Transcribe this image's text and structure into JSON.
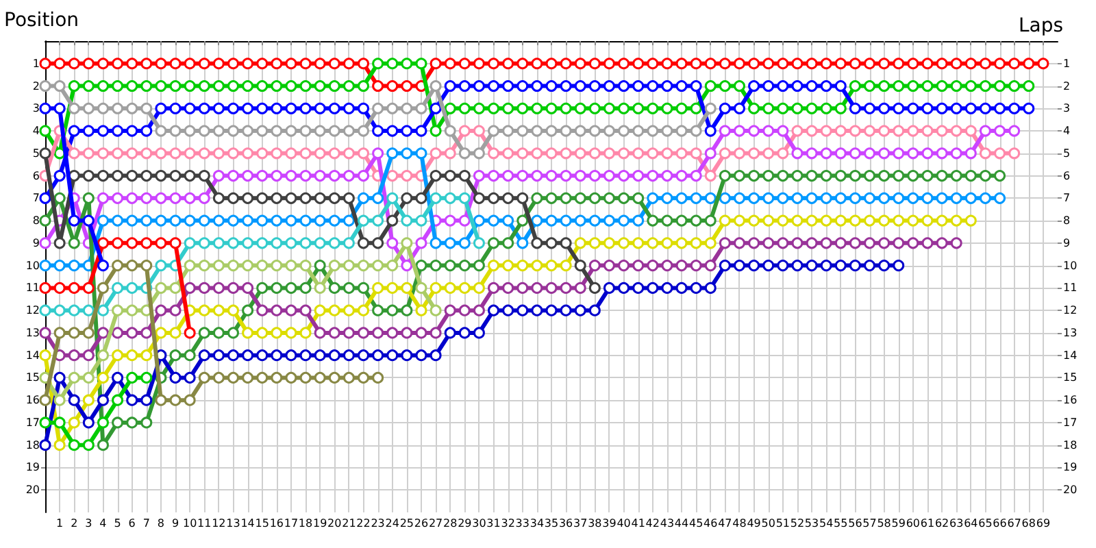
{
  "chart_data": {
    "type": "line",
    "xlabel": "Laps",
    "ylabel": "Position",
    "marker": "circle",
    "line_style": "solid",
    "grid": true,
    "x": [
      0,
      1,
      2,
      3,
      4,
      5,
      6,
      7,
      8,
      9,
      10,
      11,
      12,
      13,
      14,
      15,
      16,
      17,
      18,
      19,
      20,
      21,
      22,
      23,
      24,
      25,
      26,
      27,
      28,
      29,
      30,
      31,
      32,
      33,
      34,
      35,
      36,
      37,
      38,
      39,
      40,
      41,
      42,
      43,
      44,
      45,
      46,
      47,
      48,
      49,
      50,
      51,
      52,
      53,
      54,
      55,
      56,
      57,
      58,
      59,
      60,
      61,
      62,
      63,
      64,
      65,
      66,
      67,
      68,
      69
    ],
    "xlim": [
      0,
      70
    ],
    "xticks": [
      1,
      2,
      3,
      4,
      5,
      6,
      7,
      8,
      9,
      10,
      11,
      12,
      13,
      14,
      15,
      16,
      17,
      18,
      19,
      20,
      21,
      22,
      23,
      24,
      25,
      26,
      27,
      28,
      29,
      30,
      31,
      32,
      33,
      34,
      35,
      36,
      37,
      38,
      39,
      40,
      41,
      42,
      43,
      44,
      45,
      46,
      47,
      48,
      49,
      50,
      51,
      52,
      53,
      54,
      55,
      56,
      57,
      58,
      59,
      60,
      61,
      62,
      63,
      64,
      65,
      66,
      67,
      68,
      69
    ],
    "ylim": [
      21,
      0
    ],
    "yticks": [
      1,
      2,
      3,
      4,
      5,
      6,
      7,
      8,
      9,
      10,
      11,
      12,
      13,
      14,
      15,
      16,
      17,
      18,
      19,
      20
    ],
    "y2lim": [
      21,
      0
    ],
    "y2ticks": [
      1,
      2,
      3,
      4,
      5,
      6,
      7,
      8,
      9,
      10,
      11,
      12,
      13,
      14,
      15,
      16,
      17,
      18,
      19,
      20
    ],
    "series": [
      {
        "color": "#ff0000",
        "values": [
          1,
          1,
          1,
          1,
          1,
          1,
          1,
          1,
          1,
          1,
          1,
          1,
          1,
          1,
          1,
          1,
          1,
          1,
          1,
          1,
          1,
          1,
          1,
          2,
          2,
          2,
          2,
          1,
          1,
          1,
          1,
          1,
          1,
          1,
          1,
          1,
          1,
          1,
          1,
          1,
          1,
          1,
          1,
          1,
          1,
          1,
          1,
          1,
          1,
          1,
          1,
          1,
          1,
          1,
          1,
          1,
          1,
          1,
          1,
          1,
          1,
          1,
          1,
          1,
          1,
          1,
          1,
          1,
          1,
          1
        ]
      },
      {
        "color": "#00cc00",
        "values": [
          4,
          5,
          2,
          2,
          2,
          2,
          2,
          2,
          2,
          2,
          2,
          2,
          2,
          2,
          2,
          2,
          2,
          2,
          2,
          2,
          2,
          2,
          2,
          1,
          1,
          1,
          1,
          4,
          3,
          3,
          3,
          3,
          3,
          3,
          3,
          3,
          3,
          3,
          3,
          3,
          3,
          3,
          3,
          3,
          3,
          3,
          2,
          2,
          2,
          3,
          3,
          3,
          3,
          3,
          3,
          3,
          2,
          2,
          2,
          2,
          2,
          2,
          2,
          2,
          2,
          2,
          2,
          2,
          2,
          null
        ]
      },
      {
        "color": "#0000ff",
        "values": [
          7,
          6,
          4,
          4,
          4,
          4,
          4,
          4,
          3,
          3,
          3,
          3,
          3,
          3,
          3,
          3,
          3,
          3,
          3,
          3,
          3,
          3,
          3,
          4,
          4,
          4,
          4,
          3,
          2,
          2,
          2,
          2,
          2,
          2,
          2,
          2,
          2,
          2,
          2,
          2,
          2,
          2,
          2,
          2,
          2,
          2,
          4,
          3,
          3,
          2,
          2,
          2,
          2,
          2,
          2,
          2,
          3,
          3,
          3,
          3,
          3,
          3,
          3,
          3,
          3,
          3,
          3,
          3,
          3,
          null
        ]
      },
      {
        "color": "#a0a0a0",
        "values": [
          2,
          2,
          3,
          3,
          3,
          3,
          3,
          3,
          4,
          4,
          4,
          4,
          4,
          4,
          4,
          4,
          4,
          4,
          4,
          4,
          4,
          4,
          4,
          3,
          3,
          3,
          3,
          2,
          4,
          5,
          5,
          4,
          4,
          4,
          4,
          4,
          4,
          4,
          4,
          4,
          4,
          4,
          4,
          4,
          4,
          4,
          3,
          null,
          null,
          null,
          null,
          null,
          null,
          null,
          null,
          null,
          null,
          null,
          null,
          null,
          null,
          null,
          null,
          null,
          null,
          null,
          null,
          null,
          null,
          null
        ]
      },
      {
        "color": "#0000ff",
        "values": [
          3,
          3,
          8,
          8,
          10,
          null,
          null,
          null,
          null,
          null,
          null,
          null,
          null,
          null,
          null,
          null,
          null,
          null,
          null,
          null,
          null,
          null,
          null,
          null,
          null,
          null,
          null,
          null,
          null,
          null,
          null,
          null,
          null,
          null,
          null,
          null,
          null,
          null,
          null,
          null,
          null,
          null,
          null,
          null,
          null,
          null,
          null,
          null,
          null,
          null,
          null,
          null,
          null,
          null,
          null,
          null,
          null,
          null,
          null,
          null,
          null,
          null,
          null,
          null,
          null,
          null,
          null,
          null,
          null,
          null
        ]
      },
      {
        "color": "#404040",
        "values": [
          5,
          9,
          6,
          6,
          6,
          6,
          6,
          6,
          6,
          6,
          6,
          6,
          7,
          7,
          7,
          7,
          7,
          7,
          7,
          7,
          7,
          7,
          9,
          9,
          8,
          7,
          7,
          6,
          6,
          6,
          7,
          7,
          7,
          7,
          9,
          9,
          9,
          10,
          11,
          null,
          null,
          null,
          null,
          null,
          null,
          null,
          null,
          null,
          null,
          null,
          null,
          null,
          null,
          null,
          null,
          null,
          null,
          null,
          null,
          null,
          null,
          null,
          null,
          null,
          null,
          null,
          null,
          null,
          null,
          null
        ]
      },
      {
        "color": "#ff88aa",
        "values": [
          6,
          4,
          5,
          5,
          5,
          5,
          5,
          5,
          5,
          5,
          5,
          5,
          5,
          5,
          5,
          5,
          5,
          5,
          5,
          5,
          5,
          5,
          5,
          6,
          6,
          6,
          6,
          5,
          5,
          4,
          4,
          5,
          5,
          5,
          5,
          5,
          5,
          5,
          5,
          5,
          5,
          5,
          5,
          5,
          5,
          5,
          6,
          5,
          5,
          5,
          5,
          5,
          4,
          4,
          4,
          4,
          4,
          4,
          4,
          4,
          4,
          4,
          4,
          4,
          4,
          5,
          5,
          5,
          null,
          null
        ]
      },
      {
        "color": "#cc44ff",
        "values": [
          9,
          8,
          7,
          9,
          7,
          7,
          7,
          7,
          7,
          7,
          7,
          7,
          6,
          6,
          6,
          6,
          6,
          6,
          6,
          6,
          6,
          6,
          6,
          5,
          9,
          10,
          9,
          8,
          8,
          8,
          6,
          6,
          6,
          6,
          6,
          6,
          6,
          6,
          6,
          6,
          6,
          6,
          6,
          6,
          6,
          6,
          5,
          4,
          4,
          4,
          4,
          4,
          5,
          5,
          5,
          5,
          5,
          5,
          5,
          5,
          5,
          5,
          5,
          5,
          5,
          4,
          4,
          4,
          null,
          null
        ]
      },
      {
        "color": "#0099ff",
        "values": [
          10,
          10,
          10,
          10,
          8,
          8,
          8,
          8,
          8,
          8,
          8,
          8,
          8,
          8,
          8,
          8,
          8,
          8,
          8,
          8,
          8,
          8,
          7,
          7,
          5,
          5,
          5,
          9,
          9,
          9,
          8,
          8,
          8,
          9,
          8,
          8,
          8,
          8,
          8,
          8,
          8,
          8,
          7,
          7,
          7,
          7,
          7,
          7,
          7,
          7,
          7,
          7,
          7,
          7,
          7,
          7,
          7,
          7,
          7,
          7,
          7,
          7,
          7,
          7,
          7,
          7,
          7,
          null,
          null,
          null
        ]
      },
      {
        "color": "#339933",
        "values": [
          8,
          7,
          9,
          7,
          18,
          17,
          17,
          17,
          15,
          14,
          14,
          13,
          13,
          13,
          12,
          11,
          11,
          11,
          11,
          10,
          11,
          11,
          11,
          12,
          12,
          12,
          10,
          10,
          10,
          10,
          10,
          9,
          9,
          8,
          7,
          7,
          7,
          7,
          7,
          7,
          7,
          7,
          8,
          8,
          8,
          8,
          8,
          6,
          6,
          6,
          6,
          6,
          6,
          6,
          6,
          6,
          6,
          6,
          6,
          6,
          6,
          6,
          6,
          6,
          6,
          6,
          6,
          null,
          null,
          null
        ]
      },
      {
        "color": "#ff0000",
        "values": [
          11,
          11,
          11,
          11,
          9,
          9,
          9,
          9,
          9,
          9,
          13,
          null,
          null,
          null,
          null,
          null,
          null,
          null,
          null,
          null,
          null,
          null,
          null,
          null,
          null,
          null,
          null,
          null,
          null,
          null,
          null,
          null,
          null,
          null,
          null,
          null,
          null,
          null,
          null,
          null,
          null,
          null,
          null,
          null,
          null,
          null,
          null,
          null,
          null,
          null,
          null,
          null,
          null,
          null,
          null,
          null,
          null,
          null,
          null,
          null,
          null,
          null,
          null,
          null,
          null,
          null,
          null,
          null,
          null,
          null
        ]
      },
      {
        "color": "#33cccc",
        "values": [
          12,
          12,
          12,
          12,
          12,
          11,
          11,
          11,
          10,
          10,
          9,
          9,
          9,
          9,
          9,
          9,
          9,
          9,
          9,
          9,
          9,
          9,
          8,
          8,
          7,
          8,
          8,
          7,
          7,
          7,
          9,
          null,
          null,
          null,
          null,
          null,
          null,
          null,
          null,
          null,
          null,
          null,
          null,
          null,
          null,
          null,
          null,
          null,
          null,
          null,
          null,
          null,
          null,
          null,
          null,
          null,
          null,
          null,
          null,
          null,
          null,
          null,
          null,
          null,
          null,
          null,
          null,
          null,
          null,
          null
        ]
      },
      {
        "color": "#993399",
        "values": [
          13,
          14,
          14,
          14,
          13,
          13,
          13,
          13,
          12,
          12,
          11,
          11,
          11,
          11,
          11,
          12,
          12,
          12,
          12,
          13,
          13,
          13,
          13,
          13,
          13,
          13,
          13,
          13,
          12,
          12,
          12,
          11,
          11,
          11,
          11,
          11,
          11,
          11,
          10,
          10,
          10,
          10,
          10,
          10,
          10,
          10,
          10,
          9,
          9,
          9,
          9,
          9,
          9,
          9,
          9,
          9,
          9,
          9,
          9,
          9,
          9,
          9,
          9,
          9,
          null,
          null,
          null,
          null,
          null,
          null
        ]
      },
      {
        "color": "#dddd00",
        "values": [
          14,
          18,
          17,
          16,
          15,
          14,
          14,
          14,
          13,
          13,
          12,
          12,
          12,
          12,
          13,
          13,
          13,
          13,
          13,
          12,
          12,
          12,
          12,
          11,
          11,
          11,
          12,
          11,
          11,
          11,
          11,
          10,
          10,
          10,
          10,
          10,
          10,
          9,
          9,
          9,
          9,
          9,
          9,
          9,
          9,
          9,
          9,
          8,
          8,
          8,
          8,
          8,
          8,
          8,
          8,
          8,
          8,
          8,
          8,
          8,
          8,
          8,
          8,
          8,
          8,
          null,
          null,
          null,
          null,
          null
        ]
      },
      {
        "color": "#888844",
        "values": [
          16,
          13,
          13,
          13,
          11,
          10,
          10,
          10,
          16,
          16,
          16,
          15,
          15,
          15,
          15,
          15,
          15,
          15,
          15,
          15,
          15,
          15,
          15,
          15,
          null,
          null,
          null,
          null,
          null,
          null,
          null,
          null,
          null,
          null,
          null,
          null,
          null,
          null,
          null,
          null,
          null,
          null,
          null,
          null,
          null,
          null,
          null,
          null,
          null,
          null,
          null,
          null,
          null,
          null,
          null,
          null,
          null,
          null,
          null,
          null,
          null,
          null,
          null,
          null,
          null,
          null,
          null,
          null,
          null,
          null
        ]
      },
      {
        "color": "#00cc00",
        "values": [
          17,
          17,
          18,
          18,
          17,
          16,
          15,
          15,
          null,
          null,
          null,
          null,
          null,
          null,
          null,
          null,
          null,
          null,
          null,
          null,
          null,
          null,
          null,
          null,
          null,
          null,
          null,
          null,
          null,
          null,
          null,
          null,
          null,
          null,
          null,
          null,
          null,
          null,
          null,
          null,
          null,
          null,
          null,
          null,
          null,
          null,
          null,
          null,
          null,
          null,
          null,
          null,
          null,
          null,
          null,
          null,
          null,
          null,
          null,
          null,
          null,
          null,
          null,
          null,
          null,
          null,
          null,
          null,
          null,
          null
        ]
      },
      {
        "color": "#0000cc",
        "values": [
          18,
          15,
          16,
          17,
          16,
          15,
          16,
          16,
          14,
          15,
          15,
          14,
          14,
          14,
          14,
          14,
          14,
          14,
          14,
          14,
          14,
          14,
          14,
          14,
          14,
          14,
          14,
          14,
          13,
          13,
          13,
          12,
          12,
          12,
          12,
          12,
          12,
          12,
          12,
          11,
          11,
          11,
          11,
          11,
          11,
          11,
          11,
          10,
          10,
          10,
          10,
          10,
          10,
          10,
          10,
          10,
          10,
          10,
          10,
          10,
          null,
          null,
          null,
          null,
          null,
          null,
          null,
          null,
          null,
          null
        ]
      },
      {
        "color": "#aacc66",
        "values": [
          15,
          16,
          15,
          15,
          14,
          12,
          12,
          12,
          11,
          11,
          10,
          10,
          10,
          10,
          10,
          10,
          10,
          10,
          10,
          11,
          10,
          10,
          10,
          10,
          10,
          9,
          11,
          12,
          null,
          null,
          null,
          null,
          null,
          null,
          null,
          null,
          null,
          null,
          null,
          null,
          null,
          null,
          null,
          null,
          null,
          null,
          null,
          null,
          null,
          null,
          null,
          null,
          null,
          null,
          null,
          null,
          null,
          null,
          null,
          null,
          null,
          null,
          null,
          null,
          null,
          null,
          null,
          null,
          null,
          null
        ]
      }
    ]
  }
}
